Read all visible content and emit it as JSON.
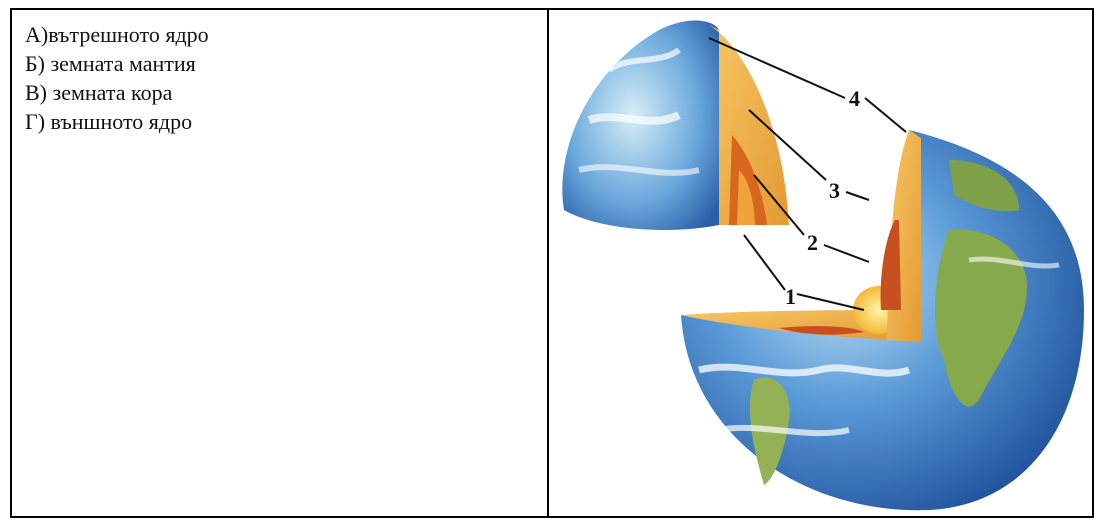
{
  "options": [
    {
      "text": "А)вътрешното ядро"
    },
    {
      "text": "Б) земната мантия"
    },
    {
      "text": "В) земната кора"
    },
    {
      "text": "Г) външното ядро"
    }
  ],
  "diagram": {
    "labels": [
      "1",
      "2",
      "3",
      "4"
    ]
  },
  "colors": {
    "ocean": "#3f80c8",
    "land": "#7aa64a",
    "crust": "#f2b646",
    "mantle": "#e8922e",
    "outer_core": "#d4622a",
    "inner_core": "#f7d84a"
  }
}
